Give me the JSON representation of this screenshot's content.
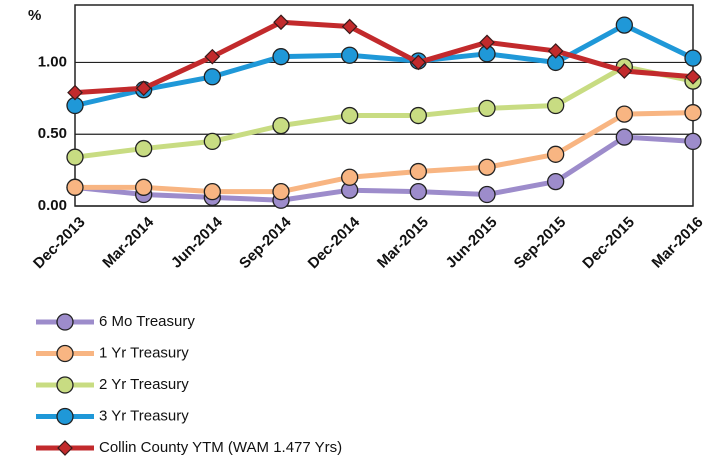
{
  "chart_data": {
    "type": "line",
    "y_label": "%",
    "categories": [
      "Dec-2013",
      "Mar-2014",
      "Jun-2014",
      "Sep-2014",
      "Dec-2014",
      "Mar-2015",
      "Jun-2015",
      "Sep-2015",
      "Dec-2015",
      "Mar-2016"
    ],
    "series": [
      {
        "name": "6 Mo Treasury",
        "color": "#9d8ccb",
        "marker": "circle",
        "values": [
          0.13,
          0.08,
          0.06,
          0.04,
          0.11,
          0.1,
          0.08,
          0.17,
          0.48,
          0.45
        ]
      },
      {
        "name": "1 Yr Treasury",
        "color": "#f8b582",
        "marker": "circle",
        "values": [
          0.13,
          0.13,
          0.1,
          0.1,
          0.2,
          0.24,
          0.27,
          0.36,
          0.64,
          0.65
        ]
      },
      {
        "name": "2 Yr Treasury",
        "color": "#c8dc82",
        "marker": "circle",
        "values": [
          0.34,
          0.4,
          0.45,
          0.56,
          0.63,
          0.63,
          0.68,
          0.7,
          0.97,
          0.87
        ]
      },
      {
        "name": "3 Yr Treasury",
        "color": "#1f98d8",
        "marker": "circle",
        "values": [
          0.7,
          0.81,
          0.9,
          1.04,
          1.05,
          1.01,
          1.06,
          1.0,
          1.26,
          1.03
        ]
      },
      {
        "name": "Collin County YTM (WAM 1.477 Yrs)",
        "color": "#c22a2c",
        "marker": "diamond",
        "values": [
          0.79,
          0.82,
          1.04,
          1.28,
          1.25,
          1.0,
          1.14,
          1.08,
          0.94,
          0.9
        ]
      }
    ],
    "ylim": [
      0,
      1.4
    ],
    "yticks": [
      {
        "value": 0,
        "label": "0.00"
      },
      {
        "value": 0.5,
        "label": "0.50"
      },
      {
        "value": 1,
        "label": "1.00"
      }
    ],
    "grid": true,
    "legend": "bottom-left"
  }
}
